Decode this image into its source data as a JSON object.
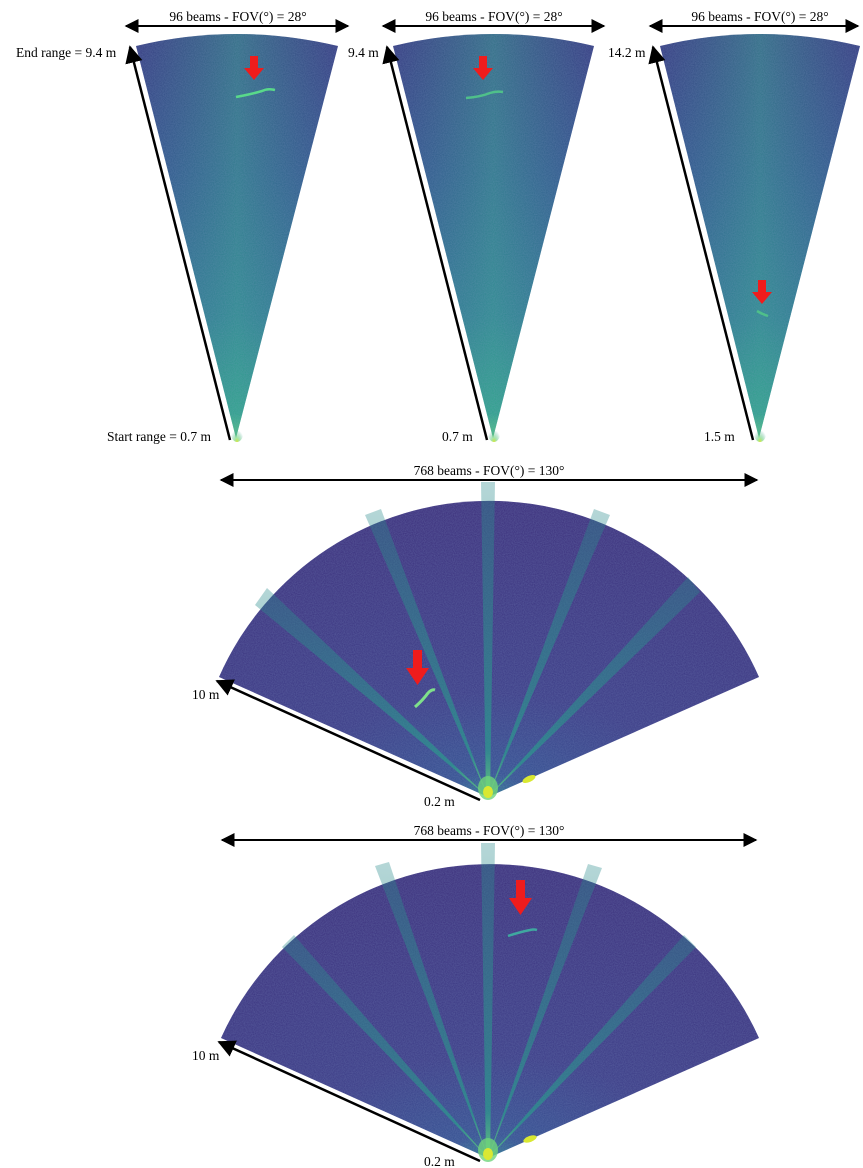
{
  "colors": {
    "background": "#ffffff",
    "sonar_dark": "#3b2a7a",
    "sonar_mid": "#2f4f8e",
    "sonar_beam": "#2a8a8c",
    "sonar_bright": "#4fc08a",
    "sonar_hot": "#d9e832",
    "arrow_red": "#ef1c1c",
    "axis_black": "#000000"
  },
  "panels": [
    {
      "id": "panel-1",
      "fov_label": "96 beams - FOV(°) = 28°",
      "end_label": "End range = 9.4 m",
      "start_label": "Start range = 0.7 m"
    },
    {
      "id": "panel-2",
      "fov_label": "96 beams - FOV(°) = 28°",
      "end_label": "9.4 m",
      "start_label": "0.7 m"
    },
    {
      "id": "panel-3",
      "fov_label": "96 beams - FOV(°) = 28°",
      "end_label": "14.2 m",
      "start_label": "1.5 m"
    },
    {
      "id": "panel-4",
      "fov_label": "768 beams - FOV(°) = 130°",
      "end_label": "10 m",
      "start_label": "0.2 m"
    },
    {
      "id": "panel-5",
      "fov_label": "768 beams - FOV(°) = 130°",
      "end_label": "10 m",
      "start_label": "0.2 m"
    }
  ]
}
